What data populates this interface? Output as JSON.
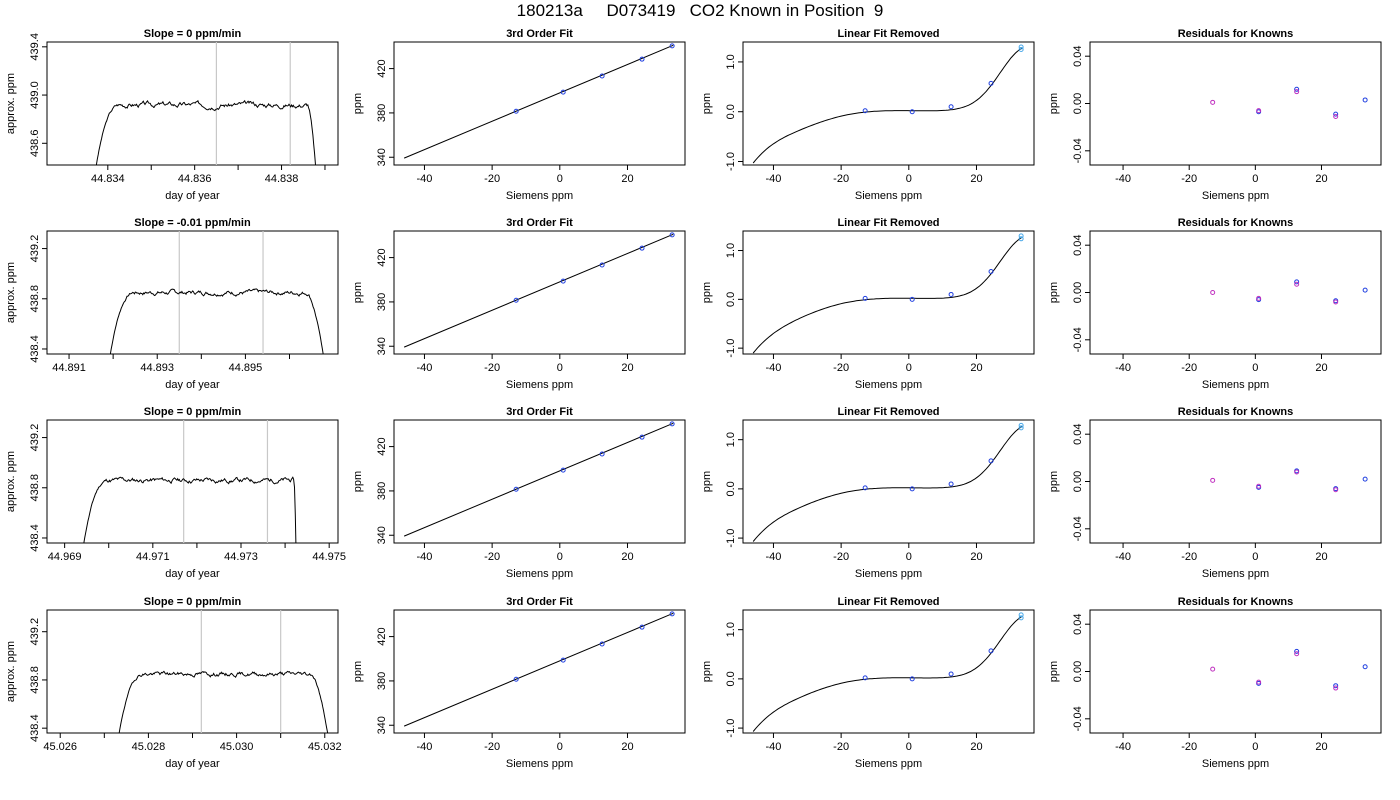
{
  "page": {
    "title": "180213a     D073419   CO2 Known in Position  9"
  },
  "colors": {
    "axis": "#000000",
    "curve": "#000000",
    "vline": "#c8c8c8",
    "point_primary": "#1f3fe0",
    "point_secondary": "#c030c0",
    "point_light": "#4aa8e8"
  },
  "chart_data": [
    {
      "type": "line",
      "panel": "time-series",
      "row": 0,
      "title": "Slope =  0  ppm/min",
      "xlabel": "day of year",
      "ylabel": "approx. ppm",
      "xlim": [
        44.8326,
        44.8393
      ],
      "ylim": [
        438.42,
        439.44
      ],
      "xticks": [
        44.834,
        44.835,
        44.836,
        44.837,
        44.838,
        44.839
      ],
      "xtick_labels": [
        "44.834",
        "",
        "44.836",
        "",
        "44.838",
        ""
      ],
      "yticks": [
        438.6,
        439.0,
        439.4
      ],
      "ytick_labels": [
        "438.6",
        "439.0",
        "439.4"
      ],
      "vlines": [
        44.8365,
        44.8382
      ],
      "trace": {
        "start": 44.8337,
        "rise_end": 44.8343,
        "end": 44.8388,
        "fall_start": 44.8386,
        "plateau": 438.92,
        "noise": 0.02,
        "seed": 3
      }
    },
    {
      "type": "scatter",
      "panel": "fit",
      "row": 0,
      "title": "3rd Order Fit",
      "xlabel": "Siemens ppm",
      "ylabel": "ppm",
      "xlim": [
        -49,
        37
      ],
      "ylim": [
        333,
        444
      ],
      "xticks": [
        -40,
        -20,
        0,
        20
      ],
      "xtick_labels": [
        "-40",
        "-20",
        "0",
        "20"
      ],
      "yticks": [
        340,
        380,
        420
      ],
      "ytick_labels": [
        "340",
        "380",
        "420"
      ],
      "points": [
        [
          -12.9,
          381.5
        ],
        [
          1.0,
          398.8
        ],
        [
          12.5,
          413.3
        ],
        [
          24.3,
          428.5
        ],
        [
          33.2,
          440.5
        ]
      ],
      "line": [
        [
          -46,
          339.2
        ],
        [
          33.5,
          441
        ]
      ]
    },
    {
      "type": "scatter",
      "panel": "linear-removed",
      "row": 0,
      "title": "Linear Fit Removed",
      "xlabel": "Siemens ppm",
      "ylabel": "ppm",
      "xlim": [
        -49,
        37
      ],
      "ylim": [
        -1.07,
        1.4
      ],
      "xticks": [
        -40,
        -20,
        0,
        20
      ],
      "xtick_labels": [
        "-40",
        "-20",
        "0",
        "20"
      ],
      "yticks": [
        -1.0,
        0.0,
        1.0
      ],
      "ytick_labels": [
        "-1.0",
        "0.0",
        "1.0"
      ],
      "points": [
        [
          -12.9,
          0.02
        ],
        [
          1.0,
          0.0
        ],
        [
          12.5,
          0.1
        ],
        [
          24.3,
          0.57
        ],
        [
          33.2,
          1.25
        ],
        [
          33.2,
          1.3
        ]
      ],
      "curve_x": [
        -46,
        33.5
      ],
      "curve_y_at_end": [
        -1.03,
        1.28
      ]
    },
    {
      "type": "scatter",
      "panel": "residuals",
      "row": 0,
      "title": "Residuals for Knowns",
      "xlabel": "Siemens ppm",
      "ylabel": "ppm",
      "xlim": [
        -50,
        38
      ],
      "ylim": [
        -0.052,
        0.052
      ],
      "xticks": [
        -40,
        -20,
        0,
        20
      ],
      "xtick_labels": [
        "-40",
        "-20",
        "0",
        "20"
      ],
      "yticks": [
        -0.04,
        0.0,
        0.04
      ],
      "ytick_labels": [
        "-0.04",
        "0.00",
        "0.04"
      ],
      "points": [
        [
          -12.9,
          0.001
        ],
        [
          1.0,
          -0.007
        ],
        [
          1.0,
          -0.006
        ],
        [
          12.5,
          0.012
        ],
        [
          12.5,
          0.01
        ],
        [
          24.3,
          -0.009
        ],
        [
          24.3,
          -0.011
        ],
        [
          33.2,
          0.003
        ]
      ]
    },
    {
      "type": "line",
      "panel": "time-series",
      "row": 1,
      "title": "Slope =  -0.01  ppm/min",
      "xlabel": "day of year",
      "ylabel": "approx. ppm",
      "xlim": [
        44.8905,
        44.8971
      ],
      "ylim": [
        438.36,
        439.34
      ],
      "xticks": [
        44.891,
        44.892,
        44.893,
        44.894,
        44.895,
        44.896
      ],
      "xtick_labels": [
        "44.891",
        "",
        "44.893",
        "",
        "44.895",
        ""
      ],
      "yticks": [
        438.4,
        438.8,
        439.2
      ],
      "ytick_labels": [
        "438.4",
        "438.8",
        "439.2"
      ],
      "vlines": [
        44.8935,
        44.8954
      ],
      "trace": {
        "start": 44.8919,
        "rise_end": 44.8925,
        "end": 44.8968,
        "fall_start": 44.8964,
        "plateau": 438.85,
        "noise": 0.017,
        "seed": 7
      }
    },
    {
      "type": "scatter",
      "panel": "fit",
      "row": 1,
      "title": "3rd Order Fit",
      "xlabel": "Siemens ppm",
      "ylabel": "ppm",
      "xlim": [
        -49,
        37
      ],
      "ylim": [
        333,
        444
      ],
      "xticks": [
        -40,
        -20,
        0,
        20
      ],
      "xtick_labels": [
        "-40",
        "-20",
        "0",
        "20"
      ],
      "yticks": [
        340,
        380,
        420
      ],
      "ytick_labels": [
        "340",
        "380",
        "420"
      ],
      "points": [
        [
          -12.9,
          381.5
        ],
        [
          1.0,
          398.8
        ],
        [
          12.5,
          413.3
        ],
        [
          24.3,
          428.5
        ],
        [
          33.2,
          440.5
        ]
      ],
      "line": [
        [
          -46,
          339.2
        ],
        [
          33.5,
          441
        ]
      ]
    },
    {
      "type": "scatter",
      "panel": "linear-removed",
      "row": 1,
      "title": "Linear Fit Removed",
      "xlabel": "Siemens ppm",
      "ylabel": "ppm",
      "xlim": [
        -49,
        37
      ],
      "ylim": [
        -1.12,
        1.4
      ],
      "xticks": [
        -40,
        -20,
        0,
        20
      ],
      "xtick_labels": [
        "-40",
        "-20",
        "0",
        "20"
      ],
      "yticks": [
        -1.0,
        0.0,
        1.0
      ],
      "ytick_labels": [
        "-1.0",
        "0.0",
        "1.0"
      ],
      "points": [
        [
          -12.9,
          0.02
        ],
        [
          1.0,
          0.0
        ],
        [
          12.5,
          0.1
        ],
        [
          24.3,
          0.57
        ],
        [
          33.2,
          1.24
        ],
        [
          33.2,
          1.3
        ]
      ],
      "curve_x": [
        -46,
        33.5
      ],
      "curve_y_at_end": [
        -1.1,
        1.27
      ]
    },
    {
      "type": "scatter",
      "panel": "residuals",
      "row": 1,
      "title": "Residuals for Knowns",
      "xlabel": "Siemens ppm",
      "ylabel": "ppm",
      "xlim": [
        -50,
        38
      ],
      "ylim": [
        -0.052,
        0.052
      ],
      "xticks": [
        -40,
        -20,
        0,
        20
      ],
      "xtick_labels": [
        "-40",
        "-20",
        "0",
        "20"
      ],
      "yticks": [
        -0.04,
        0.0,
        0.04
      ],
      "ytick_labels": [
        "-0.04",
        "0.00",
        "0.04"
      ],
      "points": [
        [
          -12.9,
          0.0
        ],
        [
          1.0,
          -0.006
        ],
        [
          1.0,
          -0.005
        ],
        [
          12.5,
          0.009
        ],
        [
          12.5,
          0.007
        ],
        [
          24.3,
          -0.007
        ],
        [
          24.3,
          -0.008
        ],
        [
          33.2,
          0.002
        ]
      ]
    },
    {
      "type": "line",
      "panel": "time-series",
      "row": 2,
      "title": "Slope =  0  ppm/min",
      "xlabel": "day of year",
      "ylabel": "approx. ppm",
      "xlim": [
        44.9686,
        44.9752
      ],
      "ylim": [
        438.36,
        439.34
      ],
      "xticks": [
        44.969,
        44.97,
        44.971,
        44.972,
        44.973,
        44.974,
        44.975
      ],
      "xtick_labels": [
        "44.969",
        "",
        "44.971",
        "",
        "44.973",
        "",
        "44.975"
      ],
      "yticks": [
        438.4,
        438.8,
        439.2
      ],
      "ytick_labels": [
        "438.4",
        "438.8",
        "439.2"
      ],
      "vlines": [
        44.9717,
        44.9736
      ],
      "trace": {
        "start": 44.9694,
        "rise_end": 44.97,
        "end": 44.97425,
        "fall_start": 44.9742,
        "plateau": 438.86,
        "noise": 0.018,
        "seed": 11
      }
    },
    {
      "type": "scatter",
      "panel": "fit",
      "row": 2,
      "title": "3rd Order Fit",
      "xlabel": "Siemens ppm",
      "ylabel": "ppm",
      "xlim": [
        -49,
        37
      ],
      "ylim": [
        333,
        444
      ],
      "xticks": [
        -40,
        -20,
        0,
        20
      ],
      "xtick_labels": [
        "-40",
        "-20",
        "0",
        "20"
      ],
      "yticks": [
        340,
        380,
        420
      ],
      "ytick_labels": [
        "340",
        "380",
        "420"
      ],
      "points": [
        [
          -12.9,
          381.5
        ],
        [
          1.0,
          398.8
        ],
        [
          12.5,
          413.3
        ],
        [
          24.3,
          428.5
        ],
        [
          33.2,
          440.5
        ]
      ],
      "line": [
        [
          -46,
          339.2
        ],
        [
          33.5,
          441
        ]
      ]
    },
    {
      "type": "scatter",
      "panel": "linear-removed",
      "row": 2,
      "title": "Linear Fit Removed",
      "xlabel": "Siemens ppm",
      "ylabel": "ppm",
      "xlim": [
        -49,
        37
      ],
      "ylim": [
        -1.1,
        1.4
      ],
      "xticks": [
        -40,
        -20,
        0,
        20
      ],
      "xtick_labels": [
        "-40",
        "-20",
        "0",
        "20"
      ],
      "yticks": [
        -1.0,
        0.0,
        1.0
      ],
      "ytick_labels": [
        "-1.0",
        "0.0",
        "1.0"
      ],
      "points": [
        [
          -12.9,
          0.02
        ],
        [
          1.0,
          0.0
        ],
        [
          12.5,
          0.1
        ],
        [
          24.3,
          0.57
        ],
        [
          33.2,
          1.24
        ],
        [
          33.2,
          1.29
        ]
      ],
      "curve_x": [
        -46,
        33.5
      ],
      "curve_y_at_end": [
        -1.07,
        1.27
      ]
    },
    {
      "type": "scatter",
      "panel": "residuals",
      "row": 2,
      "title": "Residuals for Knowns",
      "xlabel": "Siemens ppm",
      "ylabel": "ppm",
      "xlim": [
        -50,
        38
      ],
      "ylim": [
        -0.052,
        0.052
      ],
      "xticks": [
        -40,
        -20,
        0,
        20
      ],
      "xtick_labels": [
        "-40",
        "-20",
        "0",
        "20"
      ],
      "yticks": [
        -0.04,
        0.0,
        0.04
      ],
      "ytick_labels": [
        "-0.04",
        "0.00",
        "0.04"
      ],
      "points": [
        [
          -12.9,
          0.001
        ],
        [
          1.0,
          -0.005
        ],
        [
          1.0,
          -0.004
        ],
        [
          12.5,
          0.009
        ],
        [
          12.5,
          0.008
        ],
        [
          24.3,
          -0.006
        ],
        [
          24.3,
          -0.007
        ],
        [
          33.2,
          0.002
        ]
      ]
    },
    {
      "type": "line",
      "panel": "time-series",
      "row": 3,
      "title": "Slope =  0  ppm/min",
      "xlabel": "day of year",
      "ylabel": "approx. ppm",
      "xlim": [
        45.0257,
        45.0323
      ],
      "ylim": [
        438.36,
        439.38
      ],
      "xticks": [
        45.026,
        45.027,
        45.028,
        45.029,
        45.03,
        45.031,
        45.032
      ],
      "xtick_labels": [
        "45.026",
        "",
        "45.028",
        "",
        "45.030",
        "",
        "45.032"
      ],
      "yticks": [
        438.4,
        438.8,
        439.2
      ],
      "ytick_labels": [
        "438.4",
        "438.8",
        "439.2"
      ],
      "vlines": [
        45.0292,
        45.031
      ],
      "trace": {
        "start": 45.0273,
        "rise_end": 45.0279,
        "end": 45.0321,
        "fall_start": 45.0317,
        "plateau": 438.85,
        "noise": 0.017,
        "seed": 19
      }
    },
    {
      "type": "scatter",
      "panel": "fit",
      "row": 3,
      "title": "3rd Order Fit",
      "xlabel": "Siemens ppm",
      "ylabel": "ppm",
      "xlim": [
        -49,
        37
      ],
      "ylim": [
        333,
        444
      ],
      "xticks": [
        -40,
        -20,
        0,
        20
      ],
      "xtick_labels": [
        "-40",
        "-20",
        "0",
        "20"
      ],
      "yticks": [
        340,
        380,
        420
      ],
      "ytick_labels": [
        "340",
        "380",
        "420"
      ],
      "points": [
        [
          -12.9,
          381.5
        ],
        [
          1.0,
          398.8
        ],
        [
          12.5,
          413.3
        ],
        [
          24.3,
          428.5
        ],
        [
          33.2,
          440.5
        ]
      ],
      "line": [
        [
          -46,
          339.2
        ],
        [
          33.5,
          441
        ]
      ]
    },
    {
      "type": "scatter",
      "panel": "linear-removed",
      "row": 3,
      "title": "Linear Fit Removed",
      "xlabel": "Siemens ppm",
      "ylabel": "ppm",
      "xlim": [
        -49,
        37
      ],
      "ylim": [
        -1.1,
        1.4
      ],
      "xticks": [
        -40,
        -20,
        0,
        20
      ],
      "xtick_labels": [
        "-40",
        "-20",
        "0",
        "20"
      ],
      "yticks": [
        -1.0,
        0.0,
        1.0
      ],
      "ytick_labels": [
        "-1.0",
        "0.0",
        "1.0"
      ],
      "points": [
        [
          -12.9,
          0.02
        ],
        [
          1.0,
          0.0
        ],
        [
          12.5,
          0.1
        ],
        [
          24.3,
          0.57
        ],
        [
          33.2,
          1.24
        ],
        [
          33.2,
          1.3
        ]
      ],
      "curve_x": [
        -46,
        33.5
      ],
      "curve_y_at_end": [
        -1.07,
        1.27
      ]
    },
    {
      "type": "scatter",
      "panel": "residuals",
      "row": 3,
      "title": "Residuals for Knowns",
      "xlabel": "Siemens ppm",
      "ylabel": "ppm",
      "xlim": [
        -50,
        38
      ],
      "ylim": [
        -0.052,
        0.052
      ],
      "xticks": [
        -40,
        -20,
        0,
        20
      ],
      "xtick_labels": [
        "-40",
        "-20",
        "0",
        "20"
      ],
      "yticks": [
        -0.04,
        0.0,
        0.04
      ],
      "ytick_labels": [
        "-0.04",
        "0.00",
        "0.04"
      ],
      "points": [
        [
          -12.9,
          0.002
        ],
        [
          1.0,
          -0.01
        ],
        [
          1.0,
          -0.009
        ],
        [
          12.5,
          0.017
        ],
        [
          12.5,
          0.015
        ],
        [
          24.3,
          -0.012
        ],
        [
          24.3,
          -0.014
        ],
        [
          33.2,
          0.004
        ]
      ]
    }
  ]
}
